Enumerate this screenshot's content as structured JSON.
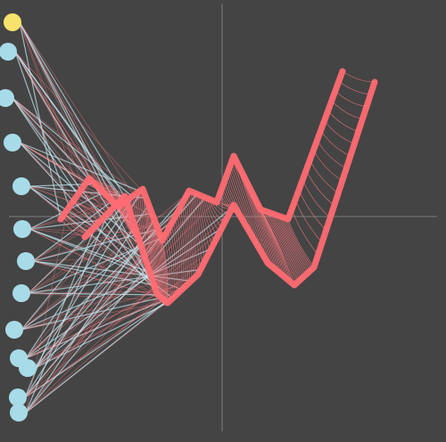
{
  "canvas": {
    "background": "#444444"
  },
  "colors": {
    "axis": "#8a8a8a",
    "ribbon": "#ff6b72",
    "ribbon_line": "#ff7a80",
    "node": "#a8dbe8",
    "node_active": "#f7e26b",
    "ray": "#c8e9f2"
  },
  "nodes": [
    {
      "id": 0,
      "active": true
    },
    {
      "id": 1,
      "active": false
    },
    {
      "id": 2,
      "active": false
    },
    {
      "id": 3,
      "active": false
    },
    {
      "id": 4,
      "active": false
    },
    {
      "id": 5,
      "active": false
    },
    {
      "id": 6,
      "active": false
    },
    {
      "id": 7,
      "active": false
    },
    {
      "id": 8,
      "active": false
    },
    {
      "id": 9,
      "active": false
    },
    {
      "id": 10,
      "active": false
    },
    {
      "id": 11,
      "active": false
    },
    {
      "id": 12,
      "active": false
    }
  ]
}
